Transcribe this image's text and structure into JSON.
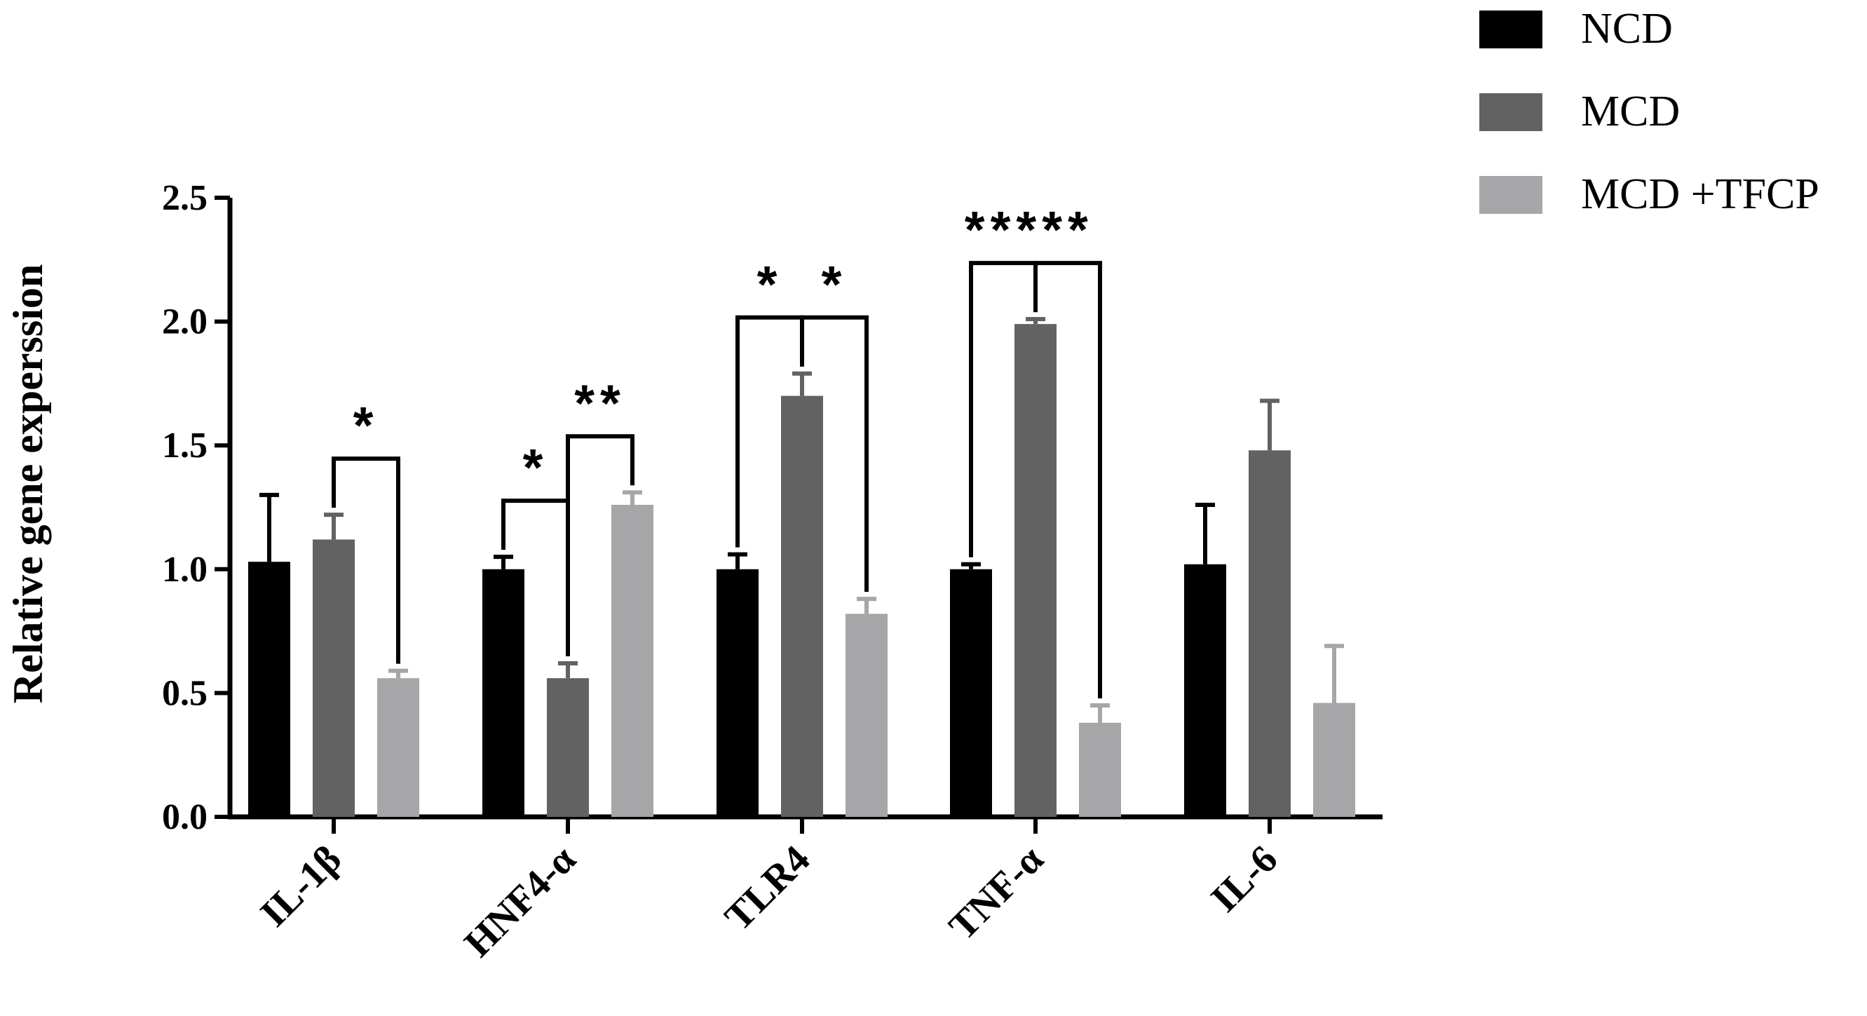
{
  "chart_data": {
    "type": "bar",
    "title": "",
    "xlabel": "",
    "ylabel": "Relative gene experssion",
    "ylim": [
      0,
      2.5
    ],
    "yticks": [
      "0.0",
      "0.5",
      "1.0",
      "1.5",
      "2.0",
      "2.5"
    ],
    "categories": [
      "IL-1β",
      "HNF4-α",
      "TLR4",
      "TNF-α",
      "IL-6"
    ],
    "series": [
      {
        "name": "NCD",
        "color": "#000000",
        "values": [
          1.03,
          1.0,
          1.0,
          1.0,
          1.02
        ],
        "errors": [
          0.27,
          0.05,
          0.06,
          0.02,
          0.24
        ]
      },
      {
        "name": "MCD",
        "color": "#626262",
        "values": [
          1.12,
          0.56,
          1.7,
          1.99,
          1.48
        ],
        "errors": [
          0.1,
          0.06,
          0.09,
          0.02,
          0.2
        ]
      },
      {
        "name": "MCD +TFCP",
        "color": "#a6a6a9",
        "values": [
          0.56,
          1.26,
          0.82,
          0.38,
          0.46
        ],
        "errors": [
          0.03,
          0.05,
          0.06,
          0.07,
          0.23
        ]
      }
    ],
    "legend": "top-right",
    "grid": false,
    "significance": [
      {
        "category": 0,
        "from": 1,
        "to": 2,
        "label": "*"
      },
      {
        "category": 1,
        "from": 0,
        "to": 1,
        "label": "*"
      },
      {
        "category": 1,
        "from": 1,
        "to": 2,
        "label": "**"
      },
      {
        "category": 2,
        "from": 0,
        "to": 1,
        "label": "*"
      },
      {
        "category": 2,
        "from": 1,
        "to": 2,
        "label": "*"
      },
      {
        "category": 3,
        "from": 0,
        "to": 1,
        "label": "***"
      },
      {
        "category": 3,
        "from": 1,
        "to": 2,
        "label": "**"
      }
    ]
  }
}
